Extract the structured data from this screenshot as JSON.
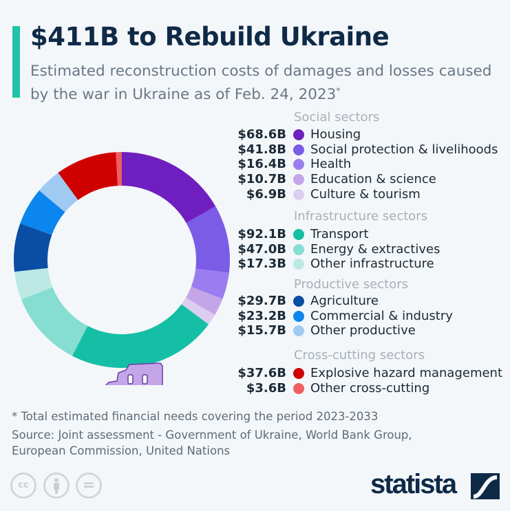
{
  "title": "$411B to Rebuild Ukraine",
  "subtitle": "Estimated reconstruction costs of damages and losses caused by the war in Ukraine as of Feb. 24, 2023",
  "subtitle_mark": "*",
  "chart_data": {
    "type": "pie",
    "variant": "donut",
    "title": "$411B to Rebuild Ukraine",
    "unit": "billion USD",
    "groups": [
      {
        "name": "Social sectors",
        "items": [
          {
            "label": "Housing",
            "value": 68.6,
            "display": "$68.6B",
            "color": "#6f1fbf"
          },
          {
            "label": "Social protection & livelihoods",
            "value": 41.8,
            "display": "$41.8B",
            "color": "#7b5ce6"
          },
          {
            "label": "Health",
            "value": 16.4,
            "display": "$16.4B",
            "color": "#9a7ef0"
          },
          {
            "label": "Education & science",
            "value": 10.7,
            "display": "$10.7B",
            "color": "#c4a6e8"
          },
          {
            "label": "Culture & tourism",
            "value": 6.9,
            "display": "$6.9B",
            "color": "#ddcdf0"
          }
        ]
      },
      {
        "name": "Infrastructure sectors",
        "items": [
          {
            "label": "Transport",
            "value": 92.1,
            "display": "$92.1B",
            "color": "#14bfa6"
          },
          {
            "label": "Energy & extractives",
            "value": 47.0,
            "display": "$47.0B",
            "color": "#86ddd2"
          },
          {
            "label": "Other infrastructure",
            "value": 17.3,
            "display": "$17.3B",
            "color": "#bce9e4"
          }
        ]
      },
      {
        "name": "Productive sectors",
        "items": [
          {
            "label": "Agriculture",
            "value": 29.7,
            "display": "$29.7B",
            "color": "#0a4ea3"
          },
          {
            "label": "Commercial & industry",
            "value": 23.2,
            "display": "$23.2B",
            "color": "#0a86ee"
          },
          {
            "label": "Other productive",
            "value": 15.7,
            "display": "$15.7B",
            "color": "#9fcbf3"
          }
        ]
      },
      {
        "name": "Cross-cutting sectors",
        "items": [
          {
            "label": "Explosive hazard management",
            "value": 37.6,
            "display": "$37.6B",
            "color": "#cf0000"
          },
          {
            "label": "Other cross-cutting",
            "value": 3.6,
            "display": "$3.6B",
            "color": "#ef5f5f"
          }
        ]
      }
    ]
  },
  "footnote": "* Total estimated financial needs covering the period 2023-2033",
  "source_line1": "Source: Joint assessment - Government of Ukraine, World Bank Group,",
  "source_line2": "European Commission, United Nations",
  "license_icons": [
    "cc-icon",
    "attribution-icon",
    "no-derivatives-icon"
  ],
  "license_cc_text": "cc",
  "license_nd_text": "=",
  "brand": "statista"
}
